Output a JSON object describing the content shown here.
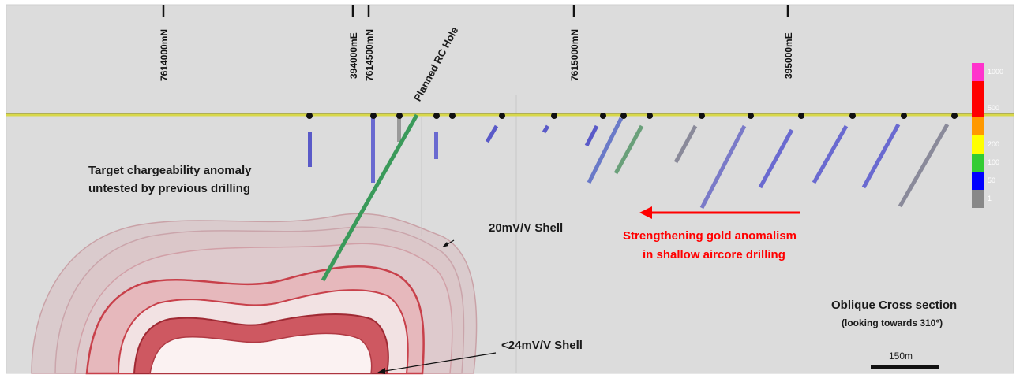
{
  "coordinates": [
    {
      "label": "7614000mN"
    },
    {
      "label": "394000mE"
    },
    {
      "label": "7614500mN"
    },
    {
      "label": "7615000mN"
    },
    {
      "label": "395000mE"
    }
  ],
  "planned_hole_label": "Planned RC Hole",
  "annotations": {
    "target_line1": "Target chargeability anomaly",
    "target_line2": "untested by previous drilling",
    "shell_20": "20mV/V Shell",
    "shell_24": "<24mV/V Shell",
    "gold_line1": "Strengthening gold anomalism",
    "gold_line2": "in shallow aircore drilling",
    "section_title": "Oblique Cross section",
    "section_subtitle": "(looking towards 310°)"
  },
  "scale_bar": {
    "label": "150m"
  },
  "legend": [
    {
      "label": "1000",
      "color": "#ff33cc"
    },
    {
      "label": "",
      "color": "#ff0000"
    },
    {
      "label": "500",
      "color": "#ff0000"
    },
    {
      "label": "",
      "color": "#ff9900"
    },
    {
      "label": "200",
      "color": "#ffff00"
    },
    {
      "label": "100",
      "color": "#33cc33"
    },
    {
      "label": "50",
      "color": "#0000ff"
    },
    {
      "label": "1",
      "color": "#888888"
    }
  ],
  "colors": {
    "annotation_red": "#ff0000",
    "surface_line": "#d8d84a",
    "shell_red": "#c8404a",
    "planned_hole": "#3a9a5a"
  }
}
